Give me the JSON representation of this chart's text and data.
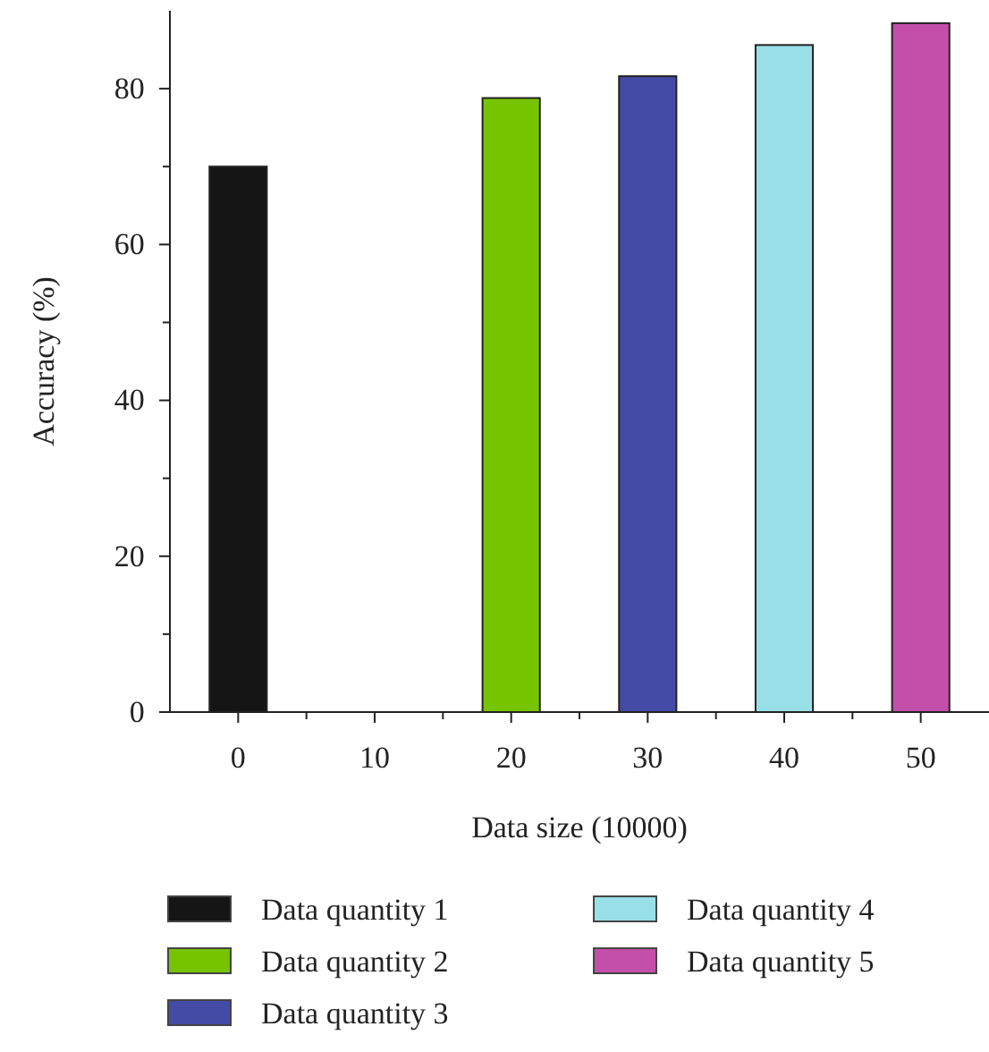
{
  "chart_data": {
    "type": "bar",
    "xlabel": "Data size (10000)",
    "ylabel": "Accuracy (%)",
    "xlim": [
      -5,
      55
    ],
    "xticks": [
      0,
      {
        "value": 5,
        "label": null
      },
      10,
      {
        "value": 15,
        "label": null
      },
      20,
      {
        "value": 25,
        "label": null
      },
      30,
      {
        "value": 35,
        "label": null
      },
      40,
      {
        "value": 45,
        "label": null
      },
      50
    ],
    "ylim": [
      0,
      90
    ],
    "yticks": [
      0,
      {
        "value": 10,
        "label": null
      },
      20,
      {
        "value": 30,
        "label": null
      },
      40,
      {
        "value": 50,
        "label": null
      },
      60,
      {
        "value": 70,
        "label": null
      },
      80
    ],
    "legend": "bottom",
    "grid": false,
    "series": [
      {
        "name": "Data quantity 1",
        "color": "#151515",
        "x": [
          0
        ],
        "values": [
          70
        ]
      },
      {
        "name": "Data quantity 2",
        "color": "#76c400",
        "x": [
          20
        ],
        "values": [
          78.8
        ]
      },
      {
        "name": "Data quantity 3",
        "color": "#444ba6",
        "x": [
          30
        ],
        "values": [
          81.6
        ]
      },
      {
        "name": "Data quantity 4",
        "color": "#99dfe7",
        "x": [
          40
        ],
        "values": [
          85.6
        ]
      },
      {
        "name": "Data quantity 5",
        "color": "#c44fab",
        "x": [
          50
        ],
        "values": [
          88.4
        ]
      }
    ]
  }
}
